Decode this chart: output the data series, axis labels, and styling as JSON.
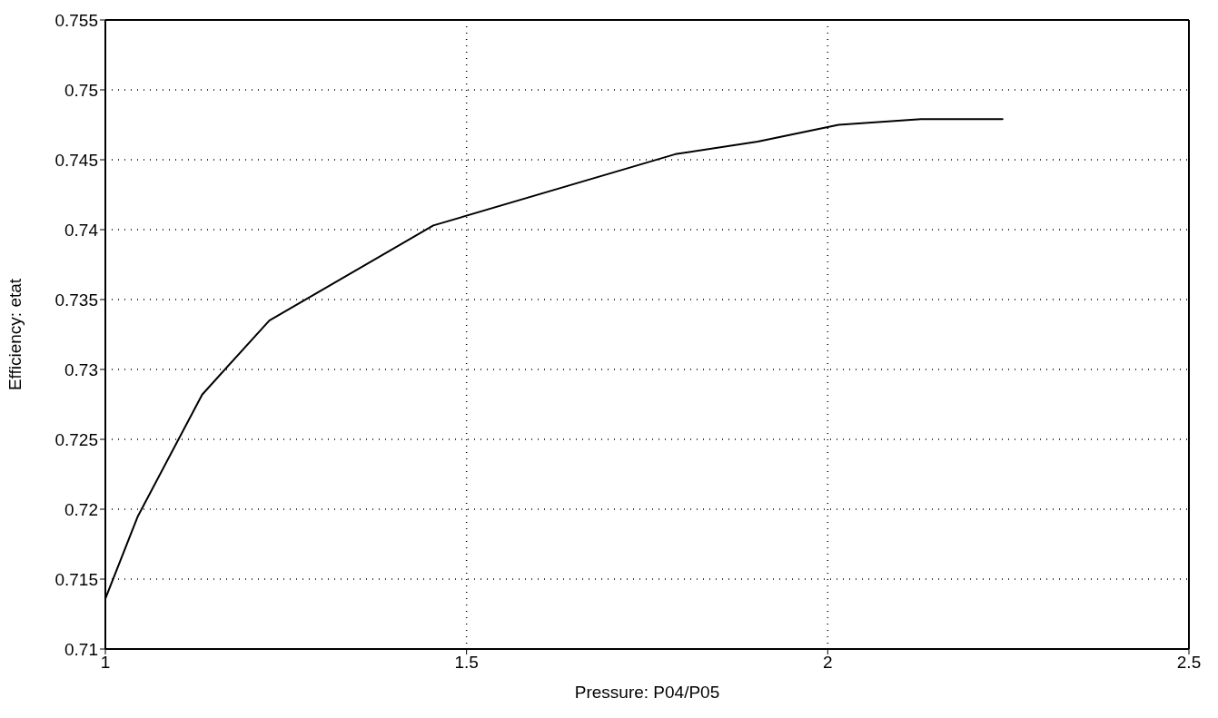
{
  "chart_data": {
    "type": "line",
    "xlabel": "Pressure: P04/P05",
    "ylabel": "Efficiency: etat",
    "x": [
      1,
      1.045,
      1.134,
      1.227,
      1.454,
      1.789,
      1.903,
      2.015,
      2.129,
      2.242
    ],
    "series": [
      {
        "color": "#000000",
        "values": [
          0.7136,
          0.7195,
          0.7282,
          0.7335,
          0.7403,
          0.7454,
          0.7463,
          0.7475,
          0.7479,
          0.7479
        ]
      }
    ],
    "xlim": [
      1,
      2.5
    ],
    "xticks": [
      1,
      1.5,
      2,
      2.5
    ],
    "ylim": [
      0.71,
      0.755
    ],
    "yticks": [
      0.71,
      0.715,
      0.72,
      0.725,
      0.73,
      0.735,
      0.74,
      0.745,
      0.75,
      0.755
    ],
    "grid": true,
    "marker": "none",
    "line_style": "solid",
    "legend": false
  }
}
